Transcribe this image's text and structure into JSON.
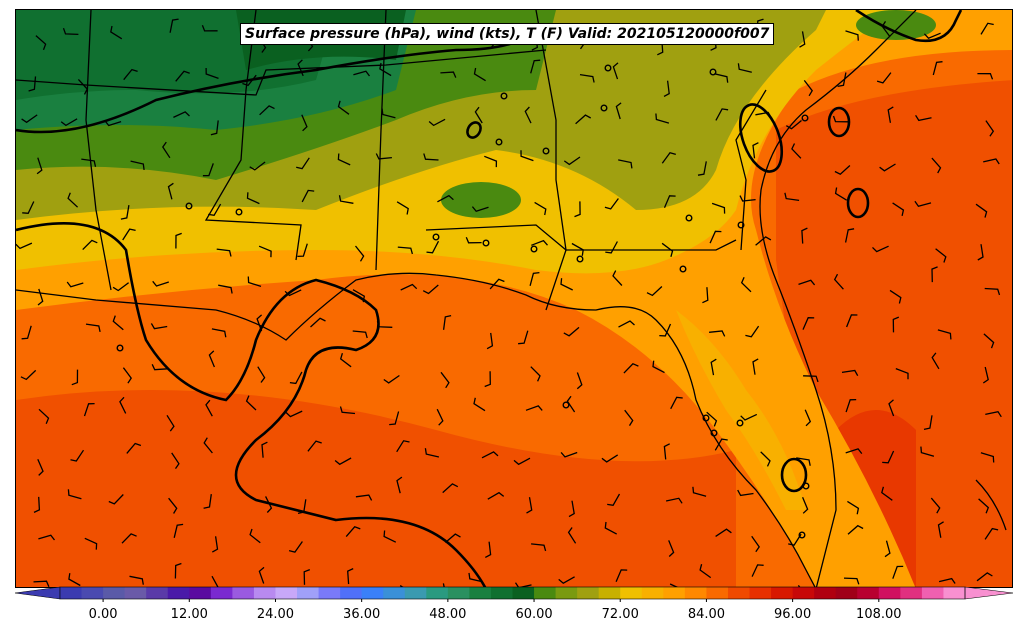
{
  "title": "Surface pressure (hPa), wind (kts), T (F) Valid: 202105120000f007",
  "colorbar": {
    "ticks": [
      "0.00",
      "12.00",
      "24.00",
      "36.00",
      "48.00",
      "60.00",
      "72.00",
      "84.00",
      "96.00",
      "108.00"
    ],
    "colors": [
      "#3b3bb0",
      "#4a4ab0",
      "#5a5aa8",
      "#6a5aa8",
      "#5a3aa8",
      "#4a1aa8",
      "#5a0aa0",
      "#7a2ad0",
      "#9a5ae0",
      "#b88af0",
      "#c8a8f8",
      "#a0a0f8",
      "#7a7af8",
      "#5070f8",
      "#3a80f8",
      "#3a90d8",
      "#3a9ab0",
      "#2a9a80",
      "#2a9060",
      "#1a8040",
      "#107030",
      "#0a6020",
      "#4a8a10",
      "#7a9a10",
      "#a0a010",
      "#c8b000",
      "#f0c000",
      "#f8b000",
      "#ffa000",
      "#ff8800",
      "#f96a00",
      "#f04a00",
      "#e83000",
      "#d81800",
      "#c80808",
      "#b00010",
      "#a00018",
      "#b80030",
      "#d01060",
      "#e03080",
      "#f060b0",
      "#f890d0"
    ],
    "vmin": -6,
    "vmax": 120
  },
  "map_layers": {
    "field": "temperature (F)",
    "overlays": [
      "surface pressure isobars",
      "wind barbs (kts)",
      "state and coastal boundaries"
    ]
  }
}
